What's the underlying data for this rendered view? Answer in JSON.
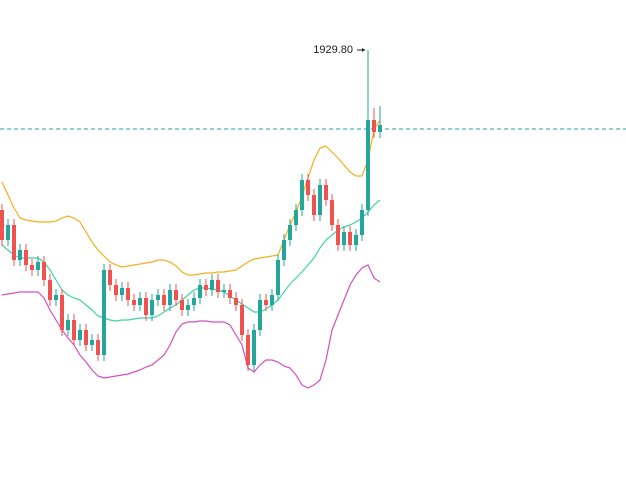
{
  "chart_data": {
    "type": "candlestick",
    "ylim": [
      1886.0,
      1934.8
    ],
    "up_color": "#26a69a",
    "down_color": "#ef5350",
    "open": [
      1913.8,
      1910.8,
      1912.3,
      1908.8,
      1909.8,
      1908.3,
      1907.8,
      1908.6,
      1906.8,
      1904.8,
      1905.3,
      1901.8,
      1902.8,
      1900.8,
      1901.8,
      1900.3,
      1900.8,
      1899.3,
      1907.8,
      1906.3,
      1905.3,
      1906.0,
      1904.8,
      1904.3,
      1905.0,
      1903.3,
      1904.8,
      1905.3,
      1904.3,
      1905.8,
      1904.8,
      1903.8,
      1904.3,
      1905.0,
      1906.3,
      1905.8,
      1906.8,
      1905.6,
      1905.8,
      1905.0,
      1904.3,
      1901.3,
      1898.3,
      1901.8,
      1904.8,
      1904.3,
      1905.3,
      1908.8,
      1910.8,
      1912.3,
      1913.8,
      1916.8,
      1915.3,
      1913.3,
      1916.3,
      1914.8,
      1912.3,
      1910.3,
      1911.6,
      1910.3,
      1911.3,
      1913.8,
      1922.8,
      1921.6
    ],
    "high": [
      1914.4,
      1912.9,
      1912.9,
      1910.4,
      1910.4,
      1908.9,
      1909.2,
      1909.2,
      1907.4,
      1905.9,
      1905.9,
      1903.4,
      1903.4,
      1902.4,
      1902.4,
      1901.4,
      1901.4,
      1908.4,
      1908.4,
      1906.9,
      1906.6,
      1906.6,
      1905.4,
      1905.6,
      1905.6,
      1905.4,
      1905.9,
      1905.9,
      1906.4,
      1906.4,
      1905.4,
      1904.9,
      1905.6,
      1906.9,
      1906.9,
      1907.4,
      1907.4,
      1906.4,
      1906.4,
      1905.6,
      1904.9,
      1901.9,
      1902.4,
      1905.4,
      1905.4,
      1905.9,
      1909.4,
      1911.4,
      1912.9,
      1914.4,
      1917.4,
      1917.4,
      1915.9,
      1916.9,
      1916.9,
      1915.4,
      1912.9,
      1912.2,
      1912.2,
      1911.9,
      1914.4,
      1929.8,
      1924.0,
      1924.2
    ],
    "low": [
      1910.2,
      1910.2,
      1908.2,
      1908.2,
      1907.7,
      1907.2,
      1907.2,
      1906.2,
      1904.2,
      1904.2,
      1901.2,
      1901.2,
      1900.2,
      1900.2,
      1899.7,
      1899.7,
      1898.7,
      1898.7,
      1905.7,
      1904.7,
      1904.7,
      1904.2,
      1903.7,
      1903.7,
      1902.7,
      1902.7,
      1904.2,
      1903.7,
      1903.7,
      1904.2,
      1903.2,
      1903.2,
      1903.7,
      1904.4,
      1905.2,
      1905.2,
      1905.0,
      1905.0,
      1904.4,
      1903.7,
      1900.7,
      1897.7,
      1897.7,
      1901.2,
      1903.7,
      1903.7,
      1904.7,
      1908.2,
      1910.2,
      1911.7,
      1913.2,
      1914.7,
      1912.7,
      1912.7,
      1914.2,
      1911.7,
      1909.7,
      1909.7,
      1909.7,
      1909.7,
      1910.7,
      1913.2,
      1921.0,
      1921.0
    ],
    "close": [
      1910.8,
      1912.3,
      1908.8,
      1909.8,
      1908.3,
      1907.8,
      1908.6,
      1906.8,
      1904.8,
      1905.3,
      1901.8,
      1902.8,
      1900.8,
      1901.8,
      1900.3,
      1900.8,
      1899.3,
      1907.8,
      1906.3,
      1905.3,
      1906.0,
      1904.8,
      1904.3,
      1905.0,
      1903.3,
      1904.8,
      1905.3,
      1904.3,
      1905.8,
      1904.8,
      1903.8,
      1904.3,
      1905.0,
      1906.3,
      1905.8,
      1906.8,
      1905.6,
      1905.8,
      1905.0,
      1904.3,
      1901.3,
      1898.3,
      1901.8,
      1904.8,
      1904.3,
      1905.3,
      1908.8,
      1910.8,
      1912.3,
      1913.8,
      1916.8,
      1915.3,
      1913.3,
      1916.3,
      1914.8,
      1912.3,
      1910.3,
      1911.6,
      1910.3,
      1911.3,
      1913.8,
      1922.8,
      1921.6,
      1922.3
    ],
    "bands": [
      {
        "color": "#f2b01e",
        "values": [
          1916.6,
          1915.3,
          1914.0,
          1913.0,
          1912.8,
          1912.7,
          1912.6,
          1912.6,
          1912.6,
          1912.7,
          1913.0,
          1913.2,
          1913.0,
          1912.6,
          1911.6,
          1910.6,
          1909.8,
          1909.2,
          1908.6,
          1908.3,
          1908.1,
          1908.2,
          1908.3,
          1908.4,
          1908.5,
          1908.6,
          1908.8,
          1908.8,
          1908.6,
          1908.2,
          1907.6,
          1907.3,
          1907.3,
          1907.4,
          1907.5,
          1907.5,
          1907.6,
          1907.6,
          1907.7,
          1907.8,
          1908.2,
          1908.6,
          1908.9,
          1909.0,
          1909.1,
          1909.2,
          1909.3,
          1910.8,
          1912.3,
          1913.6,
          1915.2,
          1917.0,
          1918.8,
          1920.0,
          1920.2,
          1919.6,
          1919.0,
          1918.3,
          1917.6,
          1917.2,
          1917.2,
          1918.8,
          1921.8,
          1922.8
        ]
      },
      {
        "color": "#3fd3a6",
        "values": [
          1910.3,
          1909.8,
          1909.3,
          1909.0,
          1909.0,
          1909.0,
          1909.0,
          1908.6,
          1907.8,
          1906.8,
          1905.8,
          1905.3,
          1905.0,
          1904.8,
          1904.3,
          1903.8,
          1903.2,
          1903.0,
          1902.8,
          1902.7,
          1902.8,
          1902.8,
          1902.9,
          1903.0,
          1903.0,
          1903.0,
          1903.2,
          1903.6,
          1904.0,
          1904.3,
          1904.8,
          1905.3,
          1905.8,
          1906.0,
          1906.0,
          1905.9,
          1905.8,
          1905.6,
          1905.2,
          1904.8,
          1904.4,
          1904.0,
          1903.6,
          1903.6,
          1903.9,
          1904.3,
          1904.8,
          1905.6,
          1906.4,
          1907.0,
          1907.6,
          1908.3,
          1909.0,
          1910.0,
          1910.8,
          1911.3,
          1911.8,
          1912.1,
          1912.3,
          1912.6,
          1913.0,
          1913.6,
          1914.3,
          1914.8
        ]
      },
      {
        "color": "#d64fc0",
        "values": [
          1905.3,
          1905.4,
          1905.5,
          1905.6,
          1905.6,
          1905.6,
          1905.6,
          1905.0,
          1903.8,
          1902.8,
          1901.8,
          1901.0,
          1900.3,
          1899.3,
          1898.6,
          1897.8,
          1897.2,
          1897.0,
          1897.1,
          1897.2,
          1897.3,
          1897.4,
          1897.6,
          1897.8,
          1898.1,
          1898.3,
          1898.8,
          1899.3,
          1900.3,
          1901.6,
          1902.4,
          1902.6,
          1902.6,
          1902.7,
          1902.7,
          1902.6,
          1902.6,
          1902.6,
          1902.3,
          1901.3,
          1900.3,
          1898.0,
          1897.6,
          1898.3,
          1898.8,
          1898.8,
          1898.6,
          1898.2,
          1898.0,
          1897.3,
          1896.3,
          1896.0,
          1896.3,
          1896.8,
          1898.8,
          1901.8,
          1903.3,
          1904.8,
          1906.3,
          1907.3,
          1908.0,
          1908.3,
          1907.0,
          1906.6
        ]
      }
    ],
    "price_line": 1921.9,
    "price_line_color": "#26a69a",
    "annotation": "1929.80"
  }
}
